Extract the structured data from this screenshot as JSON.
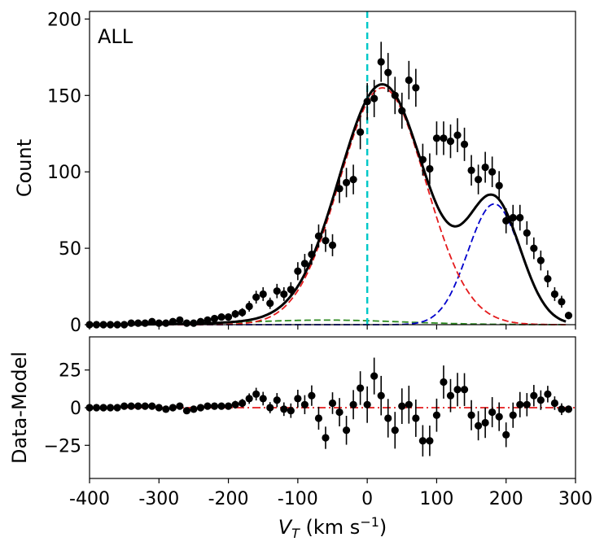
{
  "chart_data": [
    {
      "type": "scatter",
      "panel": "top",
      "annotation": "ALL",
      "ylabel": "Count",
      "xlim": [
        -400,
        300
      ],
      "ylim": [
        0,
        205
      ],
      "yticks": [
        0,
        50,
        100,
        150,
        200
      ],
      "grid": false,
      "vline": {
        "x": 0,
        "color": "#00c8c8",
        "style": "dashed"
      },
      "points_x": [
        -400,
        -390,
        -380,
        -370,
        -360,
        -350,
        -340,
        -330,
        -320,
        -310,
        -300,
        -290,
        -280,
        -270,
        -260,
        -250,
        -240,
        -230,
        -220,
        -210,
        -200,
        -190,
        -180,
        -170,
        -160,
        -150,
        -140,
        -130,
        -120,
        -110,
        -100,
        -90,
        -80,
        -70,
        -60,
        -50,
        -40,
        -30,
        -20,
        -10,
        0,
        10,
        20,
        30,
        40,
        50,
        60,
        70,
        80,
        90,
        100,
        110,
        120,
        130,
        140,
        150,
        160,
        170,
        180,
        190,
        200,
        210,
        220,
        230,
        240,
        250,
        260,
        270,
        280,
        290
      ],
      "points_y": [
        0,
        0,
        0,
        0,
        0,
        0,
        1,
        1,
        1,
        2,
        1,
        1,
        2,
        3,
        1,
        1,
        2,
        3,
        4,
        5,
        5,
        7,
        8,
        12,
        18,
        20,
        14,
        22,
        20,
        23,
        35,
        40,
        46,
        58,
        55,
        52,
        89,
        93,
        95,
        126,
        146,
        148,
        172,
        165,
        150,
        140,
        160,
        155,
        108,
        102,
        122,
        122,
        120,
        124,
        118,
        101,
        95,
        103,
        100,
        91,
        68,
        70,
        70,
        60,
        50,
        42,
        30,
        20,
        15,
        6
      ],
      "yerr": [
        1,
        1,
        1,
        1,
        1,
        1,
        1,
        1,
        1,
        1.4,
        1,
        1,
        1.4,
        1.7,
        1,
        1,
        1.4,
        1.7,
        2,
        2.2,
        2.2,
        2.6,
        2.8,
        3.5,
        4.2,
        4.5,
        3.7,
        4.7,
        4.5,
        4.8,
        5.9,
        6.3,
        6.8,
        7.6,
        7.4,
        7.2,
        9.4,
        9.6,
        9.7,
        11.2,
        12.1,
        12.2,
        13.1,
        12.8,
        12.2,
        11.8,
        12.6,
        12.4,
        10.4,
        10.1,
        11,
        11,
        11,
        11.1,
        10.9,
        10,
        9.7,
        10.1,
        10,
        9.5,
        8.2,
        8.4,
        8.4,
        7.7,
        7.1,
        6.5,
        5.5,
        4.5,
        3.9,
        2.4
      ],
      "series": [
        {
          "color": "#000000",
          "style": "solid"
        },
        {
          "color": "#e41a1c",
          "style": "dashed"
        },
        {
          "color": "#0000cc",
          "style": "dashed"
        },
        {
          "color": "#2e8b20",
          "style": "dashed"
        }
      ]
    },
    {
      "type": "scatter",
      "panel": "bottom",
      "ylabel": "Data-Model",
      "xlabel_main": "V",
      "xlabel_sub": "T",
      "xlabel_units": " (km s",
      "xlabel_exp": "−1",
      "xlabel_close": ")",
      "xlim": [
        -400,
        300
      ],
      "ylim": [
        -47,
        47
      ],
      "yticks": [
        -25,
        0,
        25
      ],
      "xticks": [
        -400,
        -300,
        -200,
        -100,
        0,
        100,
        200,
        300
      ],
      "xticklabels": [
        "-400",
        "-300",
        "-200",
        "-100",
        "0",
        "100",
        "200",
        "300"
      ],
      "yticklabels": [
        "−25",
        "0",
        "25"
      ],
      "zero_line": {
        "y": 0,
        "color": "#e41a1c",
        "style": "dashdot"
      },
      "points_y": [
        0,
        0,
        0,
        0,
        0,
        1,
        1,
        1,
        1,
        1,
        0,
        -1,
        0,
        1,
        -2,
        -1,
        0,
        1,
        1,
        1,
        1,
        2,
        3,
        6,
        9,
        6,
        0,
        5,
        -1,
        -2,
        6,
        2,
        8,
        -7,
        -20,
        3,
        -3,
        -15,
        2,
        13,
        2,
        21,
        8,
        -7,
        -15,
        1,
        2,
        -7,
        -22,
        -22,
        -5,
        17,
        8,
        12,
        12,
        -5,
        -12,
        -10,
        -3,
        -6,
        -18,
        -5,
        2,
        2,
        8,
        5,
        9,
        3,
        -1,
        -1
      ],
      "yerr": [
        1,
        1,
        1,
        1,
        1,
        1,
        1,
        1,
        1,
        1,
        1,
        1,
        1.4,
        1.7,
        1,
        1,
        1.4,
        1.7,
        2,
        2.2,
        2.2,
        2.6,
        2.8,
        3.5,
        4.2,
        4.5,
        3.7,
        4.7,
        4.5,
        4.8,
        5.9,
        6.3,
        6.8,
        7.6,
        7.4,
        7.2,
        9.4,
        9.6,
        9.7,
        11.2,
        12.1,
        12.2,
        13.1,
        12.8,
        12.2,
        11.8,
        12.6,
        12.4,
        10.4,
        10.1,
        11,
        11,
        11,
        11.1,
        10.9,
        10,
        9.7,
        10.1,
        10,
        9.5,
        8.2,
        8.4,
        8.4,
        7.7,
        7.1,
        6.5,
        5.5,
        4.5,
        3.9,
        2.4
      ]
    }
  ]
}
